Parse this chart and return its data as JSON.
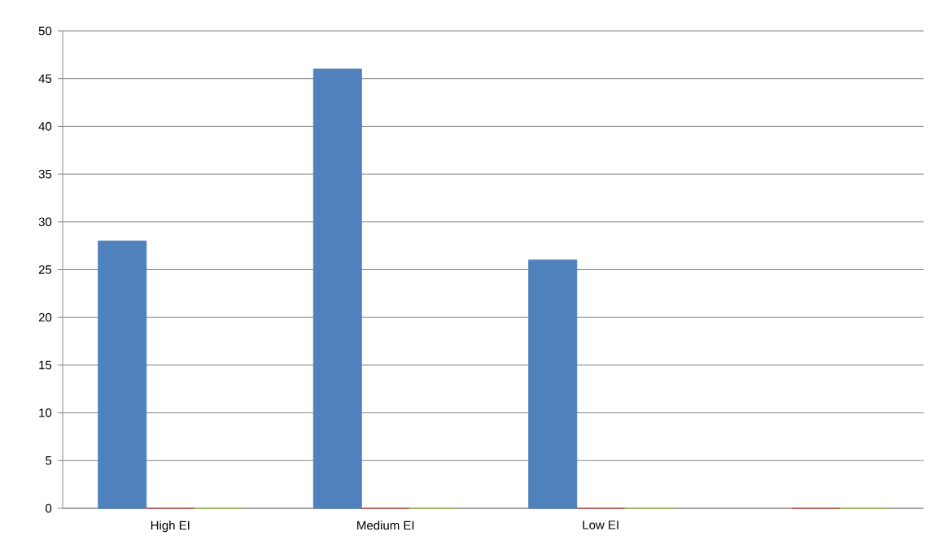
{
  "chart_data": {
    "type": "bar",
    "categories": [
      "High EI",
      "Medium EI",
      "Low EI",
      null
    ],
    "series": [
      {
        "color": "#4f81bd",
        "values": [
          28,
          46,
          26,
          null
        ]
      },
      {
        "color": "#c0504d",
        "values": [
          0,
          0,
          0,
          0
        ]
      },
      {
        "color": "#9bbb59",
        "values": [
          0,
          0,
          0,
          0
        ]
      }
    ],
    "ylim": [
      0,
      50
    ],
    "yticks": [
      0,
      5,
      10,
      15,
      20,
      25,
      30,
      35,
      40,
      45,
      50
    ],
    "grid": "y"
  }
}
